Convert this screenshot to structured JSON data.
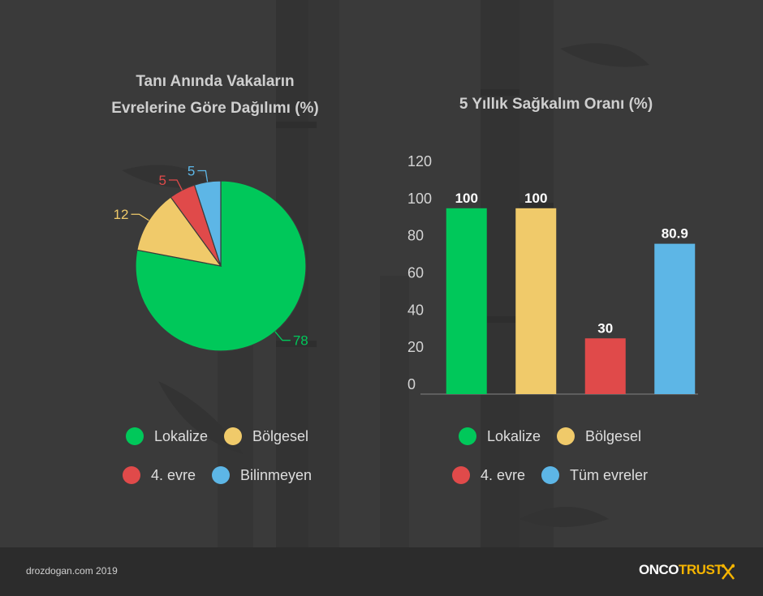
{
  "colors": {
    "green": "#00c85a",
    "yellow": "#f0ca6a",
    "red": "#e04a4a",
    "blue": "#5db6e6"
  },
  "chart_data": [
    {
      "type": "pie",
      "title_line1": "Tanı Anında Vakaların",
      "title_line2": "Evrelerine Göre Dağılımı (%)",
      "labels": [
        "Lokalize",
        "Bölgesel",
        "4. evre",
        "Bilinmeyen"
      ],
      "values": [
        78,
        12,
        5,
        5
      ],
      "colors": [
        "#00c85a",
        "#f0ca6a",
        "#e04a4a",
        "#5db6e6"
      ],
      "legend_position": "bottom"
    },
    {
      "type": "bar",
      "title": "5 Yıllık Sağkalım Oranı (%)",
      "categories": [
        "Lokalize",
        "Bölgesel",
        "4. evre",
        "Tüm evreler"
      ],
      "values": [
        100,
        100,
        30,
        80.9
      ],
      "value_labels": [
        "100",
        "100",
        "30",
        "80.9"
      ],
      "colors": [
        "#00c85a",
        "#f0ca6a",
        "#e04a4a",
        "#5db6e6"
      ],
      "ylim": [
        0,
        120
      ],
      "yticks": [
        "0",
        "20",
        "40",
        "60",
        "80",
        "100",
        "120"
      ],
      "grid": false,
      "legend_position": "bottom"
    }
  ],
  "footer": {
    "site": "drozdogan.com 2019",
    "logo_part1": "ONCO",
    "logo_part2": "TRUST"
  }
}
